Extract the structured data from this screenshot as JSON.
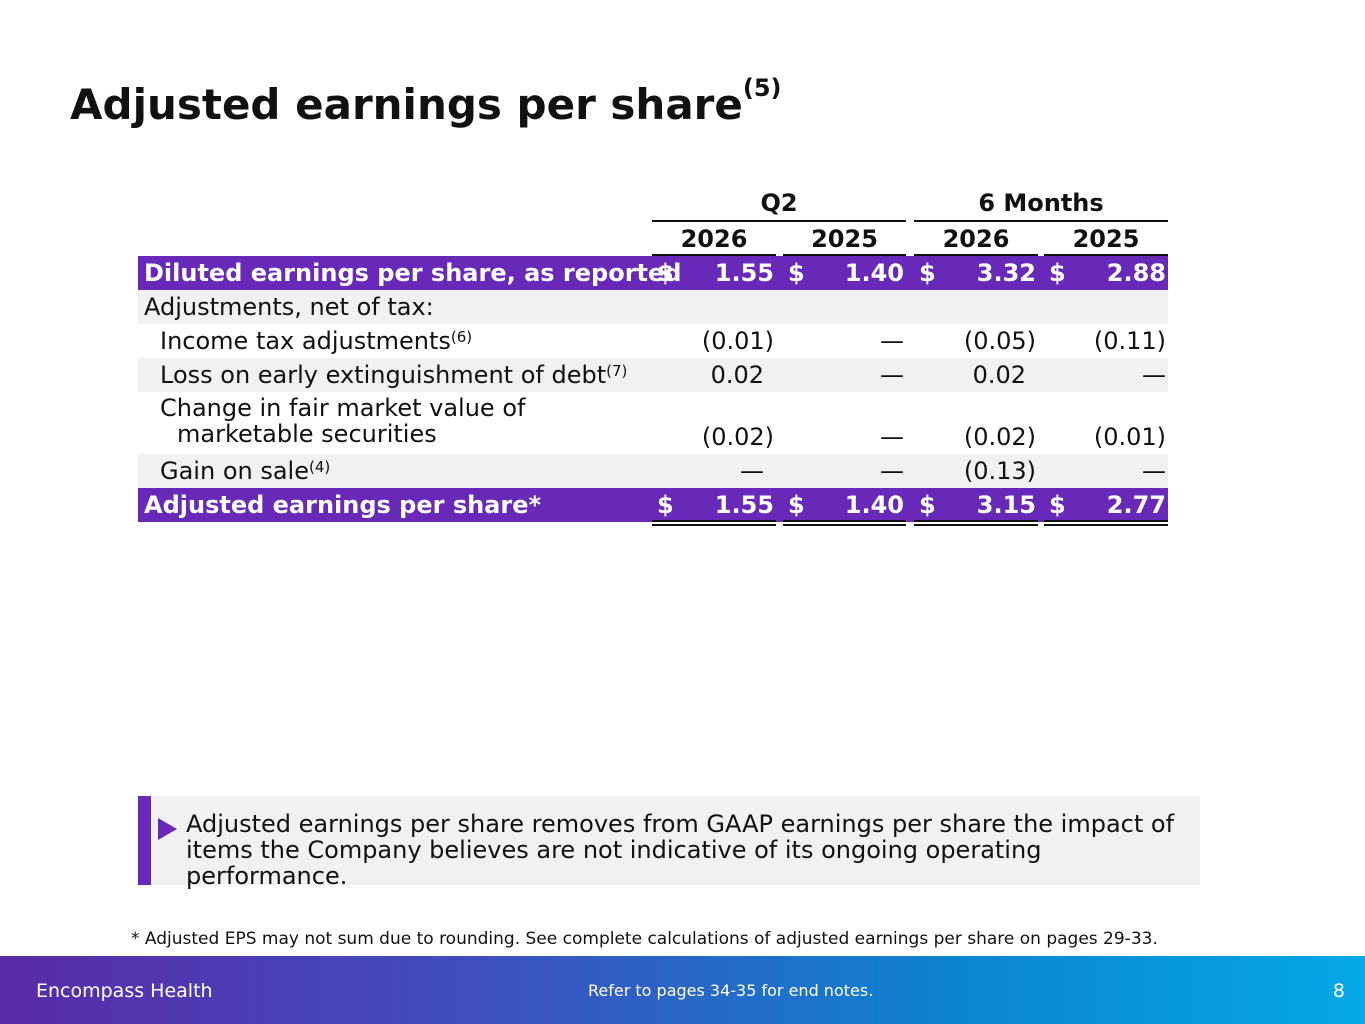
{
  "title": {
    "text": "Adjusted earnings per share",
    "sup": "(5)"
  },
  "table": {
    "group_headers": [
      "Q2",
      "6 Months"
    ],
    "year_headers": [
      "2026",
      "2025",
      "2026",
      "2025"
    ],
    "rows": [
      {
        "label": "Diluted earnings per share, as reported",
        "sup": "",
        "currency": "$",
        "values": [
          "1.55",
          "1.40",
          "3.32",
          "2.88"
        ]
      },
      {
        "label": "Adjustments, net of tax:",
        "sup": "",
        "values": [
          "",
          "",
          "",
          ""
        ]
      },
      {
        "label": "Income tax adjustments",
        "sup": "(6)",
        "values": [
          "(0.01)",
          "—",
          "(0.05)",
          "(0.11)"
        ]
      },
      {
        "label": "Loss on early extinguishment of debt",
        "sup": "(7)",
        "values": [
          "0.02",
          "—",
          "0.02",
          "—"
        ]
      },
      {
        "label_line1": "Change in fair market value of",
        "label_line2": "marketable securities",
        "values": [
          "(0.02)",
          "—",
          "(0.02)",
          "(0.01)"
        ]
      },
      {
        "label": "Gain on sale",
        "sup": "(4)",
        "values": [
          "—",
          "—",
          "(0.13)",
          "—"
        ]
      },
      {
        "label": "Adjusted earnings per share*",
        "sup": "",
        "currency": "$",
        "values": [
          "1.55",
          "1.40",
          "3.15",
          "2.77"
        ]
      }
    ]
  },
  "callout": {
    "text": "Adjusted earnings per share removes from GAAP earnings per share the impact of items the Company believes are not indicative of its ongoing operating performance."
  },
  "footnote": "*  Adjusted EPS may not sum due to rounding. See complete calculations of adjusted earnings per share on pages 29-33.",
  "footer": {
    "brand": "Encompass Health",
    "note": "Refer to pages 34-35 for end notes.",
    "page_number": "8"
  },
  "colors": {
    "accent": "#6929b8",
    "row_gray": "#f1f1f1"
  }
}
